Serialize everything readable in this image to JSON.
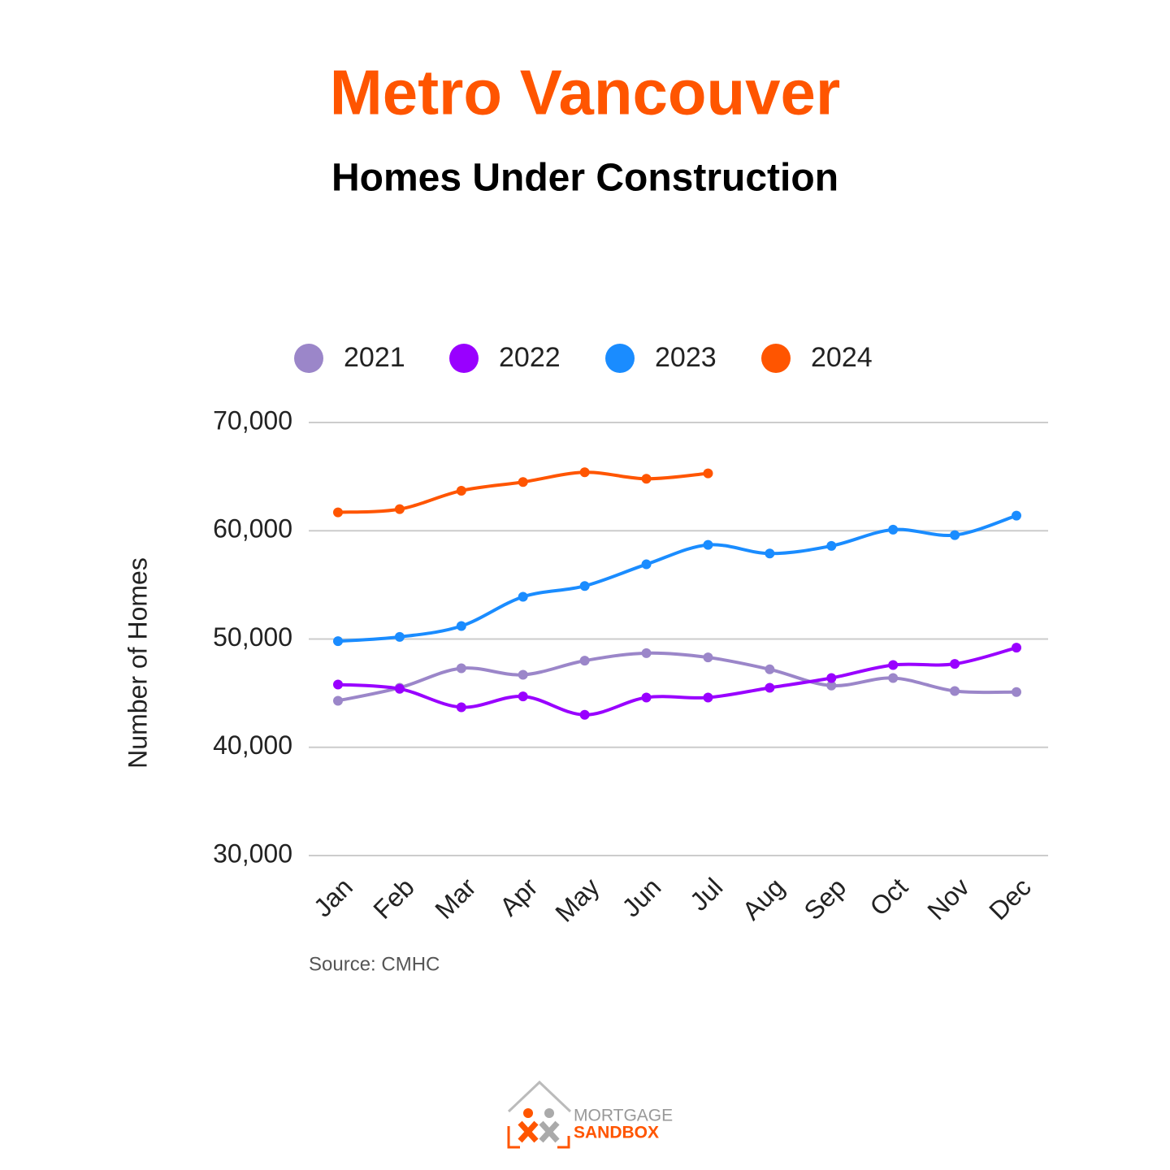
{
  "chart_data": {
    "type": "line",
    "title": "Metro Vancouver",
    "subtitle": "Homes Under Construction",
    "y_axis_label": "Number of Homes",
    "source": "Source: CMHC",
    "logo_text": [
      "MORTGAGE",
      "SANDBOX"
    ],
    "categories": [
      "Jan",
      "Feb",
      "Mar",
      "Apr",
      "May",
      "Jun",
      "Jul",
      "Aug",
      "Sep",
      "Oct",
      "Nov",
      "Dec"
    ],
    "series": [
      {
        "name": "2021",
        "color": "#9b86c9",
        "values": [
          44300,
          45500,
          47300,
          46700,
          48000,
          48700,
          48300,
          47200,
          45700,
          46400,
          45200,
          45100
        ]
      },
      {
        "name": "2022",
        "color": "#9900ff",
        "values": [
          45800,
          45400,
          43700,
          44700,
          43000,
          44600,
          44600,
          45500,
          46400,
          47600,
          47700,
          49200
        ]
      },
      {
        "name": "2023",
        "color": "#1a8cff",
        "values": [
          49800,
          50200,
          51200,
          53900,
          54900,
          56900,
          58700,
          57900,
          58600,
          60100,
          59600,
          61400
        ]
      },
      {
        "name": "2024",
        "color": "#ff5500",
        "values": [
          61700,
          62000,
          63700,
          64500,
          65400,
          64800,
          65300,
          null,
          null,
          null,
          null,
          null
        ]
      }
    ],
    "ylim": [
      30000,
      70000
    ],
    "yticks": [
      {
        "value": 30000,
        "label": "30,000"
      },
      {
        "value": 40000,
        "label": "40,000"
      },
      {
        "value": 50000,
        "label": "50,000"
      },
      {
        "value": 60000,
        "label": "60,000"
      },
      {
        "value": 70000,
        "label": "70,000"
      }
    ],
    "grid": true,
    "legend": "top",
    "smooth": true
  }
}
